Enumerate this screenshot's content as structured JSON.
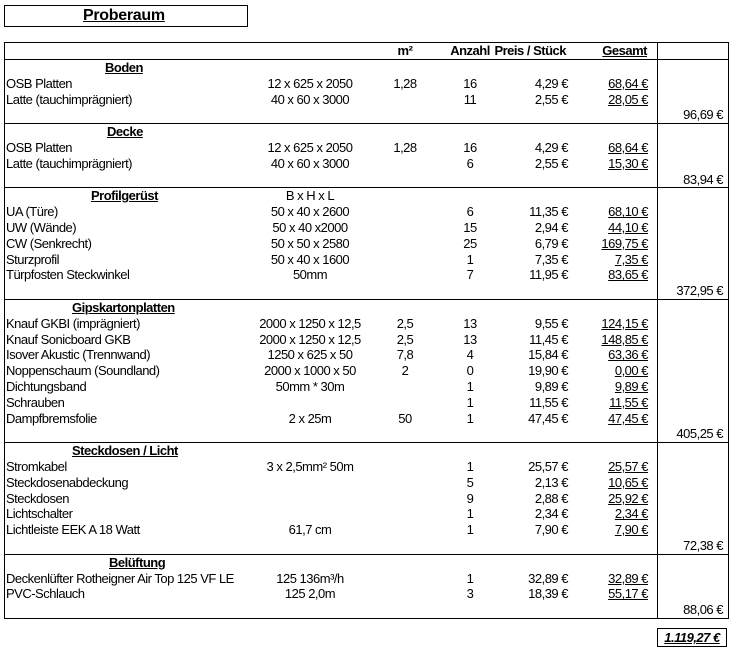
{
  "title": "Proberaum",
  "header": {
    "m2": "m²",
    "qty": "Anzahl",
    "price": "Preis / Stück",
    "total": "Gesamt"
  },
  "sections": [
    {
      "title": "Boden",
      "subtotal": "96,69 €",
      "items": [
        {
          "name": "OSB Platten",
          "dim": "12 x 625 x 2050",
          "m2": "1,28",
          "qty": "16",
          "price": "4,29 €",
          "total": "68,64 €"
        },
        {
          "name": "Latte (tauchimprägniert)",
          "dim": "40 x 60 x 3000",
          "m2": "",
          "qty": "11",
          "price": "2,55 €",
          "total": "28,05 €"
        }
      ]
    },
    {
      "title": "Decke",
      "subtotal": "83,94 €",
      "items": [
        {
          "name": "OSB Platten",
          "dim": "12 x 625 x 2050",
          "m2": "1,28",
          "qty": "16",
          "price": "4,29 €",
          "total": "68,64 €"
        },
        {
          "name": "Latte (tauchimprägniert)",
          "dim": "40 x 60 x 3000",
          "m2": "",
          "qty": "6",
          "price": "2,55 €",
          "total": "15,30 €"
        }
      ]
    },
    {
      "title": "Profilgerüst",
      "title_dim": "B x H x L",
      "subtotal": "372,95 €",
      "items": [
        {
          "name": "UA (Türe)",
          "dim": "50 x 40 x 2600",
          "m2": "",
          "qty": "6",
          "price": "11,35 €",
          "total": "68,10 €"
        },
        {
          "name": "UW (Wände)",
          "dim": "50 x 40 x2000",
          "m2": "",
          "qty": "15",
          "price": "2,94 €",
          "total": "44,10 €"
        },
        {
          "name": "CW (Senkrecht)",
          "dim": "50 x 50 x 2580",
          "m2": "",
          "qty": "25",
          "price": "6,79 €",
          "total": "169,75 €"
        },
        {
          "name": "Sturzprofil",
          "dim": "50 x 40 x 1600",
          "m2": "",
          "qty": "1",
          "price": "7,35 €",
          "total": "7,35 €"
        },
        {
          "name": "Türpfosten Steckwinkel",
          "dim": "50mm",
          "m2": "",
          "qty": "7",
          "price": "11,95 €",
          "total": "83,65 €"
        }
      ]
    },
    {
      "title": "Gipskartonplatten",
      "subtotal": "405,25 €",
      "items": [
        {
          "name": "Knauf GKBI (imprägniert)",
          "dim": "2000 x 1250 x 12,5",
          "m2": "2,5",
          "qty": "13",
          "price": "9,55 €",
          "total": "124,15 €"
        },
        {
          "name": "Knauf Sonicboard GKB",
          "dim": "2000 x 1250 x 12,5",
          "m2": "2,5",
          "qty": "13",
          "price": "11,45 €",
          "total": "148,85 €"
        },
        {
          "name": "Isover Akustic (Trennwand)",
          "dim": "1250 x 625 x 50",
          "m2": "7,8",
          "qty": "4",
          "price": "15,84 €",
          "total": "63,36 €"
        },
        {
          "name": "Noppenschaum (Soundland)",
          "dim": "2000 x 1000 x 50",
          "m2": "2",
          "qty": "0",
          "price": "19,90 €",
          "total": "0,00 €"
        },
        {
          "name": "Dichtungsband",
          "dim": "50mm * 30m",
          "m2": "",
          "qty": "1",
          "price": "9,89 €",
          "total": "9,89 €"
        },
        {
          "name": "Schrauben",
          "dim": "",
          "m2": "",
          "qty": "1",
          "price": "11,55 €",
          "total": "11,55 €"
        },
        {
          "name": "Dampfbremsfolie",
          "dim": "2 x 25m",
          "m2": "50",
          "qty": "1",
          "price": "47,45 €",
          "total": "47,45 €"
        }
      ]
    },
    {
      "title": "Steckdosen / Licht",
      "subtotal": "72,38 €",
      "items": [
        {
          "name": "Stromkabel",
          "dim": "3 x 2,5mm² 50m",
          "m2": "",
          "qty": "1",
          "price": "25,57 €",
          "total": "25,57 €"
        },
        {
          "name": "Steckdosenabdeckung",
          "dim": "",
          "m2": "",
          "qty": "5",
          "price": "2,13 €",
          "total": "10,65 €"
        },
        {
          "name": "Steckdosen",
          "dim": "",
          "m2": "",
          "qty": "9",
          "price": "2,88 €",
          "total": "25,92 €"
        },
        {
          "name": "Lichtschalter",
          "dim": "",
          "m2": "",
          "qty": "1",
          "price": "2,34 €",
          "total": "2,34 €"
        },
        {
          "name": "Lichtleiste EEK A 18 Watt",
          "dim": "61,7 cm",
          "m2": "",
          "qty": "1",
          "price": "7,90 €",
          "total": "7,90 €"
        }
      ]
    },
    {
      "title": "Belüftung",
      "subtotal": "88,06 €",
      "items": [
        {
          "name": "Deckenlüfter Rotheigner Air Top 125 VF LE",
          "dim": "125  136m³/h",
          "m2": "",
          "qty": "1",
          "price": "32,89 €",
          "total": "32,89 €"
        },
        {
          "name": "PVC-Schlauch",
          "dim": "125  2,0m",
          "m2": "",
          "qty": "3",
          "price": "18,39 €",
          "total": "55,17 €"
        }
      ]
    }
  ],
  "grand_total": "1.119,27 €"
}
